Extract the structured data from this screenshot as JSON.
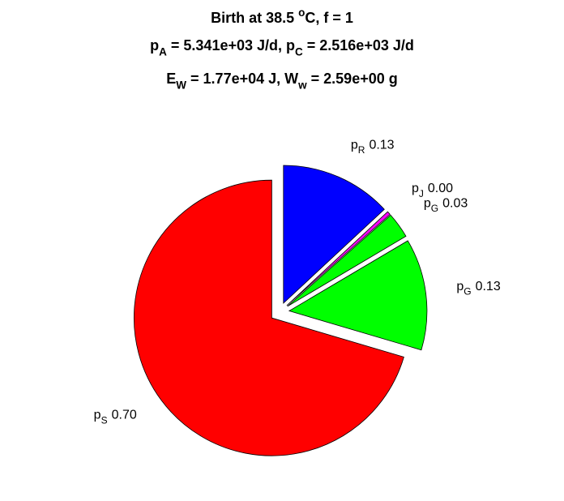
{
  "chart_data": {
    "type": "pie",
    "title": [
      [
        {
          "t": "Birth at 38.5 "
        },
        {
          "sup": "o"
        },
        {
          "t": "C, f = 1"
        }
      ],
      [
        {
          "t": "p"
        },
        {
          "sub": "A"
        },
        {
          "t": " = 5.341e+03 J/d, p"
        },
        {
          "sub": "C"
        },
        {
          "t": " = 2.516e+03 J/d"
        }
      ],
      [
        {
          "t": "E"
        },
        {
          "sub": "W"
        },
        {
          "t": " = 1.77e+04 J, W"
        },
        {
          "sub": "w"
        },
        {
          "t": " = 2.59e+00 g"
        }
      ]
    ],
    "labels": [
      [
        {
          "t": "p"
        },
        {
          "sub": "R"
        }
      ],
      [
        {
          "t": "p"
        },
        {
          "sub": "J"
        }
      ],
      [
        {
          "t": "p"
        },
        {
          "sub": "G"
        }
      ],
      [
        {
          "t": "p"
        },
        {
          "sub": "G"
        }
      ],
      [
        {
          "t": "p"
        },
        {
          "sub": "S"
        }
      ]
    ],
    "values": [
      0.13,
      0.004,
      0.03,
      0.13,
      0.7
    ],
    "value_labels": [
      "0.13",
      "0.00",
      "0.03",
      "0.13",
      "0.70"
    ],
    "colors": [
      "#0000ff",
      "#ff00ff",
      "#00ff00",
      "#00ff00",
      "#ff0000"
    ],
    "explode": true
  }
}
